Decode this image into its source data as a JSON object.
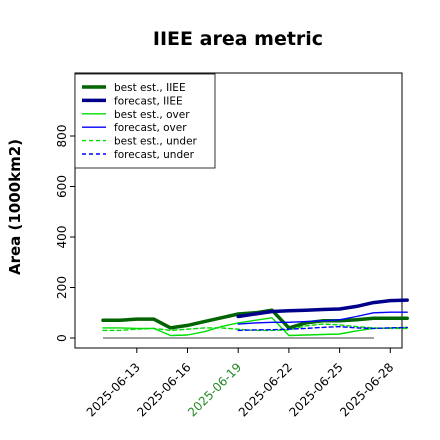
{
  "chart_data": {
    "type": "line",
    "title": "IIEE area metric",
    "xlabel": "",
    "ylabel": "Area (1000km2)",
    "categories": [
      "2025-06-11",
      "2025-06-12",
      "2025-06-13",
      "2025-06-14",
      "2025-06-15",
      "2025-06-16",
      "2025-06-17",
      "2025-06-18",
      "2025-06-19",
      "2025-06-20",
      "2025-06-21",
      "2025-06-22",
      "2025-06-23",
      "2025-06-24",
      "2025-06-25",
      "2025-06-26",
      "2025-06-27",
      "2025-06-28",
      "2025-06-29"
    ],
    "xticks": [
      "2025-06-13",
      "2025-06-16",
      "2025-06-19",
      "2025-06-22",
      "2025-06-25",
      "2025-06-28"
    ],
    "highlight_tick": "2025-06-19",
    "highlight_color": "#228b22",
    "yticks": [
      0,
      200,
      400,
      600,
      800
    ],
    "ylim": [
      -40,
      1000
    ],
    "grid": false,
    "legend_position": "top-left",
    "zero_line": true,
    "series": [
      {
        "name": "best est., IIEE",
        "color": "#006400",
        "style": "solid",
        "width": "thick",
        "values": [
          70,
          70,
          75,
          75,
          40,
          50,
          65,
          80,
          95,
          100,
          110,
          40,
          60,
          68,
          68,
          72,
          78,
          78,
          78
        ]
      },
      {
        "name": "forecast, IIEE",
        "color": "#00008b",
        "style": "solid",
        "width": "thick",
        "values": [
          null,
          null,
          null,
          null,
          null,
          null,
          null,
          null,
          85,
          95,
          105,
          108,
          110,
          113,
          115,
          125,
          140,
          148,
          150
        ]
      },
      {
        "name": "best est., over",
        "color": "#00dd00",
        "style": "solid",
        "width": "thin",
        "values": [
          40,
          40,
          38,
          38,
          10,
          12,
          25,
          45,
          60,
          70,
          80,
          10,
          12,
          14,
          16,
          28,
          38,
          40,
          42
        ]
      },
      {
        "name": "forecast, over",
        "color": "#0000ff",
        "style": "solid",
        "width": "thin",
        "values": [
          null,
          null,
          null,
          null,
          null,
          null,
          null,
          null,
          55,
          60,
          62,
          62,
          65,
          68,
          72,
          85,
          100,
          102,
          102
        ]
      },
      {
        "name": "best est., under",
        "color": "#00dd00",
        "style": "dashed",
        "width": "thin",
        "values": [
          30,
          30,
          35,
          38,
          30,
          35,
          40,
          40,
          35,
          30,
          30,
          32,
          48,
          55,
          52,
          45,
          40,
          38,
          38
        ]
      },
      {
        "name": "forecast, under",
        "color": "#0000ff",
        "style": "dashed",
        "width": "thin",
        "values": [
          null,
          null,
          null,
          null,
          null,
          null,
          null,
          null,
          30,
          32,
          33,
          35,
          38,
          42,
          45,
          40,
          38,
          40,
          42
        ]
      }
    ]
  }
}
